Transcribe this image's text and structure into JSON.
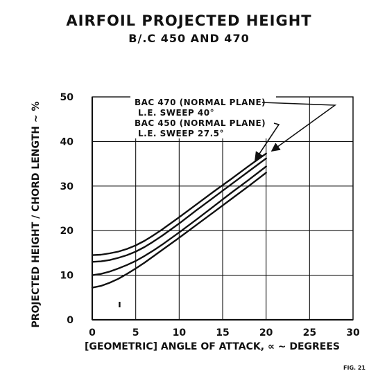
{
  "chart_data": {
    "type": "line",
    "title": "AIRFOIL PROJECTED HEIGHT",
    "subtitle": "B/.C 450 AND 470",
    "xlabel": "[GEOMETRIC] ANGLE OF ATTACK, ∝ ~ DEGREES",
    "ylabel": "PROJECTED HEIGHT / CHORD LENGTH ~ %",
    "xlim": [
      0,
      30
    ],
    "ylim": [
      0,
      50
    ],
    "xticks": [
      "0",
      "5",
      "10",
      "15",
      "20",
      "25",
      "30"
    ],
    "yticks": [
      "0",
      "10",
      "20",
      "30",
      "40",
      "50"
    ],
    "grid": true,
    "series": [
      {
        "x": [
          0,
          1,
          2,
          3,
          4,
          5,
          6,
          7,
          8,
          9,
          10,
          12,
          14,
          16,
          18,
          20
        ],
        "y": [
          14.5,
          14.6,
          14.9,
          15.3,
          15.9,
          16.7,
          17.7,
          18.9,
          20.2,
          21.6,
          23.0,
          25.9,
          28.8,
          31.6,
          34.5,
          37.3
        ]
      },
      {
        "x": [
          0,
          1,
          2,
          3,
          4,
          5,
          6,
          7,
          8,
          9,
          10,
          12,
          14,
          16,
          18,
          20
        ],
        "y": [
          13.0,
          13.1,
          13.4,
          13.9,
          14.5,
          15.3,
          16.3,
          17.5,
          18.8,
          20.2,
          21.6,
          24.6,
          27.5,
          30.4,
          33.3,
          36.2
        ]
      },
      {
        "x": [
          0,
          1,
          2,
          3,
          4,
          5,
          6,
          7,
          8,
          9,
          10,
          12,
          14,
          16,
          18,
          20
        ],
        "y": [
          10.0,
          10.3,
          10.8,
          11.5,
          12.3,
          13.2,
          14.3,
          15.5,
          16.8,
          18.2,
          19.6,
          22.5,
          25.5,
          28.5,
          31.4,
          34.4
        ]
      },
      {
        "x": [
          0,
          1,
          2,
          3,
          4,
          5,
          6,
          7,
          8,
          9,
          10,
          12,
          14,
          16,
          18,
          20
        ],
        "y": [
          7.2,
          7.6,
          8.3,
          9.2,
          10.3,
          11.5,
          12.8,
          14.2,
          15.6,
          17.0,
          18.4,
          21.3,
          24.2,
          27.1,
          30.0,
          33.0
        ]
      }
    ],
    "annotations": [
      "BAC 470 (NORMAL PLANE)",
      "L.E. SWEEP 40°",
      "BAC 450 (NORMAL PLANE)",
      "L.E. SWEEP 27.5°"
    ],
    "figure_label": "FIG. 21"
  }
}
